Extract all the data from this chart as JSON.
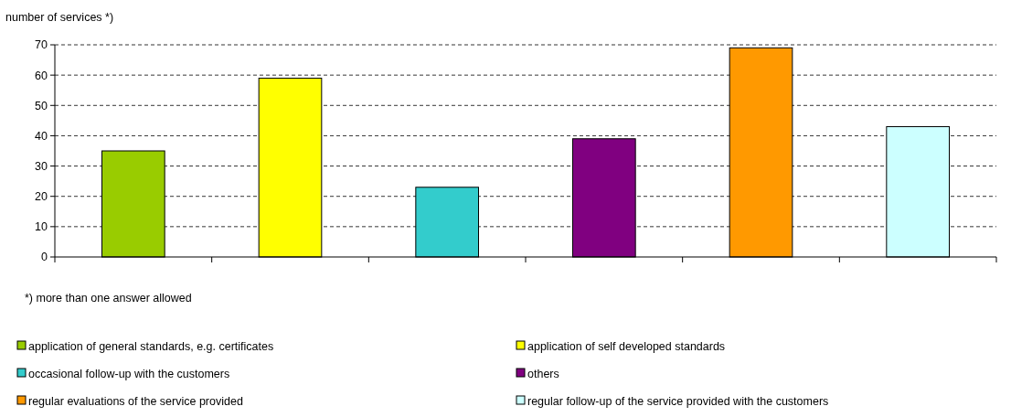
{
  "chart_data": {
    "type": "bar",
    "ylabel": "number of services *)",
    "categories": [
      null,
      null,
      null,
      null,
      null,
      null
    ],
    "series": [
      {
        "name": "application of general standards, e.g. certificates",
        "color": "#99cc00",
        "values": [
          35,
          null,
          null,
          null,
          null,
          null
        ]
      },
      {
        "name": "application of self developed standards",
        "color": "#ffff00",
        "values": [
          null,
          59,
          null,
          null,
          null,
          null
        ]
      },
      {
        "name": "occasional follow-up with the customers",
        "color": "#33cccc",
        "values": [
          null,
          null,
          23,
          null,
          null,
          null
        ]
      },
      {
        "name": "others",
        "color": "#800080",
        "values": [
          null,
          null,
          null,
          39,
          null,
          null
        ]
      },
      {
        "name": "regular evaluations of the service provided",
        "color": "#ff9900",
        "values": [
          null,
          null,
          null,
          null,
          69,
          null
        ]
      },
      {
        "name": "regular follow-up of the service provided with the customers",
        "color": "#ccffff",
        "values": [
          null,
          null,
          null,
          null,
          null,
          43
        ]
      }
    ],
    "stacked": true,
    "ylim": [
      0,
      70
    ],
    "yticks": [
      0,
      10,
      20,
      30,
      40,
      50,
      60,
      70
    ],
    "grid": "y",
    "legend": "bottom",
    "tick_labels": "y",
    "annotations": [
      "*) more than one answer allowed"
    ]
  }
}
